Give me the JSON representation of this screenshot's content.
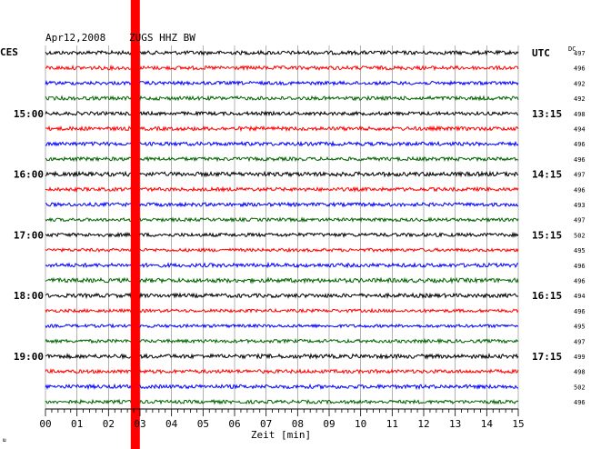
{
  "header": {
    "date": "Apr12,2008",
    "station": "ZUGS HHZ BW",
    "left_tz": "CES",
    "right_tz": "UTC",
    "dc_label": "DC",
    "corner_mark": "ա"
  },
  "chart_data": {
    "type": "line",
    "xlabel": "Zeit [min]",
    "x_ticks": [
      "00",
      "01",
      "02",
      "03",
      "04",
      "05",
      "06",
      "07",
      "08",
      "09",
      "10",
      "11",
      "12",
      "13",
      "14",
      "15"
    ],
    "xlim": [
      0,
      15
    ],
    "left_hour_labels": [
      {
        "row": 4,
        "label": "15:00"
      },
      {
        "row": 8,
        "label": "16:00"
      },
      {
        "row": 12,
        "label": "17:00"
      },
      {
        "row": 16,
        "label": "18:00"
      },
      {
        "row": 20,
        "label": "19:00"
      }
    ],
    "right_hour_labels": [
      {
        "row": 0,
        "label": "UTC"
      },
      {
        "row": 4,
        "label": "13:15"
      },
      {
        "row": 8,
        "label": "14:15"
      },
      {
        "row": 12,
        "label": "15:15"
      },
      {
        "row": 16,
        "label": "16:15"
      },
      {
        "row": 20,
        "label": "17:15"
      }
    ],
    "dc_values": [
      "497",
      "496",
      "492",
      "492",
      "498",
      "494",
      "496",
      "496",
      "497",
      "496",
      "493",
      "497",
      "502",
      "495",
      "496",
      "496",
      "494",
      "496",
      "495",
      "497",
      "499",
      "498",
      "502",
      "496"
    ],
    "trace_colors": [
      "#000000",
      "#ff0000",
      "#0000ff",
      "#006400"
    ],
    "row_count": 24,
    "marker": {
      "minute": 2.85,
      "color": "#ff0000"
    },
    "grid": true
  }
}
